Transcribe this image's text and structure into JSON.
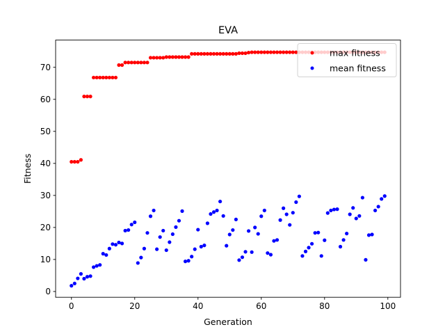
{
  "chart_data": {
    "type": "scatter",
    "title": "EVA",
    "xlabel": "Generation",
    "ylabel": "Fitness",
    "xlim": [
      -5,
      104
    ],
    "ylim": [
      -1.8,
      78.5
    ],
    "xticks": [
      0,
      20,
      40,
      60,
      80,
      100
    ],
    "yticks": [
      0,
      10,
      20,
      30,
      40,
      50,
      60,
      70
    ],
    "grid": false,
    "legend_position": "top-right",
    "x": [
      0,
      1,
      2,
      3,
      4,
      5,
      6,
      7,
      8,
      9,
      10,
      11,
      12,
      13,
      14,
      15,
      16,
      17,
      18,
      19,
      20,
      21,
      22,
      23,
      24,
      25,
      26,
      27,
      28,
      29,
      30,
      31,
      32,
      33,
      34,
      35,
      36,
      37,
      38,
      39,
      40,
      41,
      42,
      43,
      44,
      45,
      46,
      47,
      48,
      49,
      50,
      51,
      52,
      53,
      54,
      55,
      56,
      57,
      58,
      59,
      60,
      61,
      62,
      63,
      64,
      65,
      66,
      67,
      68,
      69,
      70,
      71,
      72,
      73,
      74,
      75,
      76,
      77,
      78,
      79,
      80,
      81,
      82,
      83,
      84,
      85,
      86,
      87,
      88,
      89,
      90,
      91,
      92,
      93,
      94,
      95,
      96,
      97,
      98,
      99
    ],
    "series": [
      {
        "name": "max fitness",
        "color": "#ff0000",
        "values": [
          40.5,
          40.5,
          40.5,
          41.1,
          60.9,
          60.9,
          60.9,
          66.8,
          66.8,
          66.8,
          66.8,
          66.8,
          66.8,
          66.8,
          66.8,
          70.7,
          70.7,
          71.5,
          71.5,
          71.5,
          71.5,
          71.5,
          71.5,
          71.5,
          71.5,
          73.0,
          73.0,
          73.0,
          73.0,
          73.0,
          73.2,
          73.2,
          73.2,
          73.2,
          73.2,
          73.2,
          73.2,
          73.2,
          74.2,
          74.2,
          74.2,
          74.2,
          74.2,
          74.2,
          74.2,
          74.2,
          74.2,
          74.2,
          74.2,
          74.2,
          74.2,
          74.2,
          74.2,
          74.4,
          74.4,
          74.4,
          74.6,
          74.7,
          74.7,
          74.7,
          74.7,
          74.7,
          74.7,
          74.7,
          74.7,
          74.7,
          74.7,
          74.7,
          74.7,
          74.7,
          74.7,
          74.7,
          74.7,
          74.7,
          74.7,
          74.7,
          74.7,
          74.7,
          74.7,
          74.7,
          74.7,
          74.7,
          74.7,
          74.7,
          74.7,
          74.7,
          74.7,
          74.7,
          74.7,
          74.7,
          74.7,
          74.7,
          74.7,
          74.7,
          74.7,
          74.7,
          74.7,
          74.7,
          74.7,
          74.7
        ]
      },
      {
        "name": "mean fitness",
        "color": "#0000ff",
        "values": [
          1.8,
          2.5,
          4.1,
          5.5,
          4.0,
          4.6,
          4.8,
          7.6,
          8.0,
          8.3,
          11.8,
          11.4,
          13.4,
          14.8,
          14.6,
          15.3,
          15.0,
          19.0,
          19.2,
          20.9,
          21.6,
          8.9,
          10.6,
          13.4,
          18.3,
          23.5,
          25.3,
          13.2,
          17.0,
          19.0,
          12.9,
          15.4,
          17.9,
          20.1,
          22.1,
          25.1,
          9.4,
          9.6,
          10.9,
          13.2,
          19.3,
          14.0,
          14.4,
          21.3,
          24.2,
          24.8,
          25.3,
          28.1,
          23.6,
          14.3,
          17.8,
          19.2,
          22.5,
          9.8,
          10.7,
          12.4,
          18.9,
          12.3,
          20.0,
          18.0,
          23.5,
          25.3,
          12.0,
          11.5,
          15.8,
          16.1,
          22.3,
          26.0,
          24.1,
          20.8,
          24.6,
          27.9,
          29.7,
          11.1,
          12.5,
          13.7,
          14.9,
          18.3,
          18.4,
          11.1,
          16.0,
          24.5,
          25.3,
          25.6,
          25.7,
          14.0,
          16.1,
          18.1,
          24.1,
          26.1,
          22.8,
          23.6,
          29.3,
          9.9,
          17.6,
          17.8,
          25.3,
          26.5,
          28.9,
          29.8
        ]
      }
    ]
  }
}
